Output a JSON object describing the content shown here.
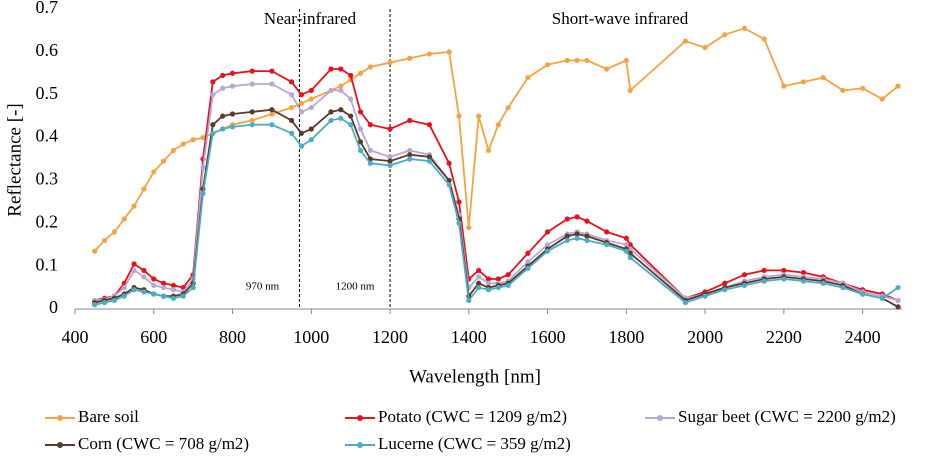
{
  "chart_data": {
    "type": "line",
    "x_label": "Wavelength [nm]",
    "y_label": "Reflectance [-]",
    "xlim": [
      400,
      2500
    ],
    "xticks": [
      400,
      600,
      800,
      1000,
      1200,
      1400,
      1600,
      1800,
      2000,
      2200,
      2400
    ],
    "ylim": [
      0,
      0.7
    ],
    "yticks": [
      0,
      0.1,
      0.2,
      0.3,
      0.4,
      0.5,
      0.6,
      0.7
    ],
    "grid": false,
    "legend": "bottom",
    "regions": [
      "Near-infrared",
      "Short-wave infrared"
    ],
    "reference_lines": [
      {
        "x": 970,
        "label": "970 nm"
      },
      {
        "x": 1200,
        "label": "1200 nm"
      }
    ],
    "x": [
      450,
      475,
      500,
      525,
      550,
      575,
      600,
      625,
      650,
      675,
      700,
      725,
      750,
      775,
      800,
      850,
      900,
      950,
      975,
      1000,
      1050,
      1075,
      1100,
      1125,
      1150,
      1200,
      1250,
      1300,
      1350,
      1375,
      1400,
      1425,
      1450,
      1475,
      1500,
      1550,
      1600,
      1650,
      1675,
      1700,
      1750,
      1800,
      1810,
      1950,
      2000,
      2050,
      2100,
      2150,
      2200,
      2250,
      2300,
      2350,
      2400,
      2450,
      2490
    ],
    "series": [
      {
        "name": "Bare soil",
        "color": "#f4a340",
        "values": [
          0.135,
          0.16,
          0.18,
          0.21,
          0.24,
          0.28,
          0.32,
          0.345,
          0.37,
          0.385,
          0.395,
          0.4,
          0.41,
          0.42,
          0.43,
          0.44,
          0.455,
          0.47,
          0.48,
          0.49,
          0.51,
          0.52,
          0.535,
          0.55,
          0.565,
          0.575,
          0.585,
          0.595,
          0.6,
          0.45,
          0.19,
          0.45,
          0.37,
          0.43,
          0.47,
          0.54,
          0.57,
          0.58,
          0.58,
          0.58,
          0.56,
          0.58,
          0.51,
          0.625,
          0.61,
          0.64,
          0.655,
          0.63,
          0.52,
          0.53,
          0.54,
          0.51,
          0.515,
          0.49,
          0.52
        ]
      },
      {
        "name": "Potato (CWC = 1209 g/m2)",
        "color": "#e8101a",
        "values": [
          0.02,
          0.025,
          0.03,
          0.06,
          0.105,
          0.09,
          0.07,
          0.06,
          0.055,
          0.05,
          0.08,
          0.35,
          0.53,
          0.545,
          0.55,
          0.555,
          0.555,
          0.53,
          0.5,
          0.51,
          0.56,
          0.56,
          0.545,
          0.46,
          0.43,
          0.42,
          0.44,
          0.43,
          0.34,
          0.25,
          0.07,
          0.09,
          0.07,
          0.07,
          0.08,
          0.13,
          0.18,
          0.21,
          0.215,
          0.205,
          0.18,
          0.165,
          0.15,
          0.025,
          0.04,
          0.06,
          0.08,
          0.09,
          0.09,
          0.085,
          0.075,
          0.06,
          0.045,
          0.035,
          0.02
        ]
      },
      {
        "name": "Sugar beet (CWC = 2200 g/m2)",
        "color": "#b7a7d3",
        "values": [
          0.02,
          0.022,
          0.03,
          0.05,
          0.09,
          0.075,
          0.055,
          0.05,
          0.045,
          0.04,
          0.07,
          0.33,
          0.5,
          0.515,
          0.52,
          0.525,
          0.525,
          0.5,
          0.46,
          0.47,
          0.51,
          0.51,
          0.49,
          0.42,
          0.37,
          0.355,
          0.37,
          0.36,
          0.3,
          0.22,
          0.05,
          0.075,
          0.06,
          0.06,
          0.065,
          0.11,
          0.15,
          0.175,
          0.18,
          0.175,
          0.16,
          0.15,
          0.14,
          0.025,
          0.035,
          0.05,
          0.065,
          0.075,
          0.08,
          0.075,
          0.07,
          0.06,
          0.04,
          0.03,
          0.02
        ]
      },
      {
        "name": "Corn (CWC = 708 g/m2)",
        "color": "#5a3a2a",
        "values": [
          0.015,
          0.02,
          0.025,
          0.035,
          0.05,
          0.045,
          0.035,
          0.03,
          0.03,
          0.035,
          0.06,
          0.28,
          0.43,
          0.45,
          0.455,
          0.46,
          0.465,
          0.44,
          0.41,
          0.42,
          0.46,
          0.465,
          0.45,
          0.39,
          0.35,
          0.345,
          0.36,
          0.355,
          0.3,
          0.21,
          0.03,
          0.06,
          0.05,
          0.055,
          0.06,
          0.1,
          0.14,
          0.17,
          0.175,
          0.17,
          0.155,
          0.14,
          0.13,
          0.02,
          0.035,
          0.05,
          0.06,
          0.07,
          0.075,
          0.07,
          0.065,
          0.055,
          0.035,
          0.025,
          0.005
        ]
      },
      {
        "name": "Lucerne (CWC = 359 g/m2)",
        "color": "#4bacc6",
        "values": [
          0.01,
          0.015,
          0.02,
          0.03,
          0.045,
          0.04,
          0.035,
          0.03,
          0.025,
          0.03,
          0.05,
          0.27,
          0.41,
          0.42,
          0.425,
          0.43,
          0.43,
          0.41,
          0.38,
          0.395,
          0.44,
          0.445,
          0.43,
          0.37,
          0.34,
          0.335,
          0.35,
          0.345,
          0.29,
          0.2,
          0.02,
          0.05,
          0.045,
          0.05,
          0.055,
          0.095,
          0.135,
          0.16,
          0.165,
          0.16,
          0.15,
          0.135,
          0.12,
          0.015,
          0.03,
          0.045,
          0.055,
          0.065,
          0.07,
          0.065,
          0.06,
          0.05,
          0.035,
          0.025,
          0.05
        ]
      }
    ]
  }
}
